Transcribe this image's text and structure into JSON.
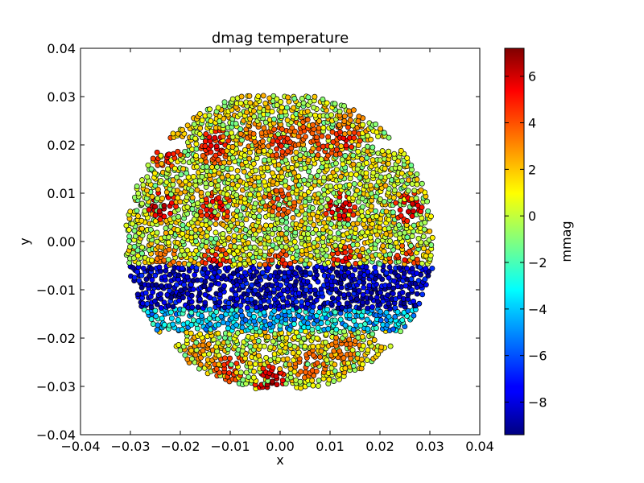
{
  "chart_data": {
    "type": "scatter",
    "title": "dmag temperature",
    "xlabel": "x",
    "ylabel": "y",
    "xlim": [
      -0.04,
      0.04
    ],
    "ylim": [
      -0.04,
      0.04
    ],
    "xticks": [
      "−0.04",
      "−0.03",
      "−0.02",
      "−0.01",
      "0.00",
      "0.01",
      "0.02",
      "0.03",
      "0.04"
    ],
    "yticks": [
      "−0.04",
      "−0.03",
      "−0.02",
      "−0.01",
      "0.00",
      "0.01",
      "0.02",
      "0.03",
      "0.04"
    ],
    "xtick_values": [
      -0.04,
      -0.03,
      -0.02,
      -0.01,
      0.0,
      0.01,
      0.02,
      0.03,
      0.04
    ],
    "ytick_values": [
      -0.04,
      -0.03,
      -0.02,
      -0.01,
      0.0,
      0.01,
      0.02,
      0.03,
      0.04
    ],
    "grid": false,
    "colorbar": {
      "label": "mmag",
      "colormap": "jet",
      "range": [
        -9.4,
        7.2
      ],
      "ticks": [
        "6",
        "4",
        "2",
        "0",
        "−2",
        "−4",
        "−6",
        "−8"
      ],
      "tick_values": [
        6,
        4,
        2,
        0,
        -2,
        -4,
        -6,
        -8
      ]
    },
    "field": {
      "shape": "disk with flattened top and bottom",
      "radius": 0.031,
      "y_top": 0.0305,
      "y_bottom": -0.0305,
      "notches_at_y": [
        0.02,
        -0.02
      ],
      "point_spacing": 0.0009
    },
    "clusters": [
      {
        "x": -0.023,
        "y": 0.0185,
        "v": 5.5
      },
      {
        "x": -0.013,
        "y": 0.019,
        "v": 4.5
      },
      {
        "x": -0.013,
        "y": 0.0205,
        "v": 6.0
      },
      {
        "x": -0.005,
        "y": 0.0215,
        "v": 3.5
      },
      {
        "x": 0.0,
        "y": 0.0205,
        "v": 5.0
      },
      {
        "x": 0.005,
        "y": 0.023,
        "v": 4.0
      },
      {
        "x": 0.009,
        "y": 0.02,
        "v": 4.5
      },
      {
        "x": 0.013,
        "y": 0.021,
        "v": 5.5
      },
      {
        "x": 0.0145,
        "y": 0.0245,
        "v": 3.0
      },
      {
        "x": -0.024,
        "y": 0.0075,
        "v": 7.0
      },
      {
        "x": -0.013,
        "y": 0.007,
        "v": 6.0
      },
      {
        "x": 0.0,
        "y": 0.0085,
        "v": 4.5
      },
      {
        "x": 0.012,
        "y": 0.007,
        "v": 6.5
      },
      {
        "x": 0.026,
        "y": 0.007,
        "v": 6.5
      },
      {
        "x": -0.013,
        "y": -0.0045,
        "v": 5.5
      },
      {
        "x": -0.0225,
        "y": -0.004,
        "v": 3.5
      },
      {
        "x": 0.0,
        "y": -0.005,
        "v": 5.0
      },
      {
        "x": 0.013,
        "y": -0.004,
        "v": 5.5
      },
      {
        "x": 0.025,
        "y": -0.004,
        "v": 5.0
      },
      {
        "x": -0.01,
        "y": -0.026,
        "v": 5.0
      },
      {
        "x": -0.002,
        "y": -0.029,
        "v": 7.0
      },
      {
        "x": 0.006,
        "y": -0.0255,
        "v": 4.0
      },
      {
        "x": 0.013,
        "y": -0.022,
        "v": 3.5
      },
      {
        "x": -0.016,
        "y": -0.023,
        "v": 3.0
      }
    ],
    "bands": [
      {
        "name": "cold band",
        "y_from": -0.014,
        "y_to": -0.005,
        "v_min": -9.4,
        "v_max": -6.5
      },
      {
        "name": "transition band",
        "y_from": -0.0185,
        "y_to": -0.014,
        "v_min": -6.0,
        "v_max": -2.0
      }
    ],
    "background_value_range": [
      -1.5,
      2.5
    ]
  }
}
